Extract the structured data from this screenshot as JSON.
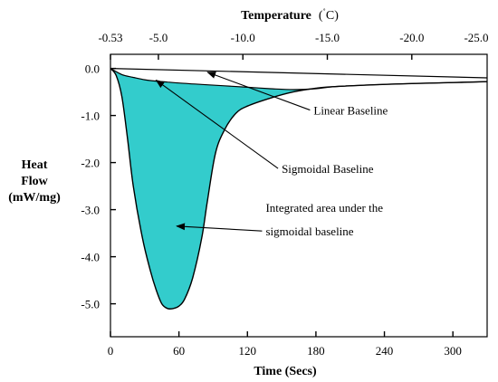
{
  "chart_data": {
    "type": "area",
    "xlabel": "Time (Secs)",
    "ylabel_lines": [
      "Heat",
      "Flow",
      "(mW/mg)"
    ],
    "top_axis_label_parts": [
      "Temperature",
      "(",
      "˚",
      "C)"
    ],
    "xlim": [
      0,
      330
    ],
    "ylim": [
      -5.7,
      0.3
    ],
    "x_ticks": [
      0,
      60,
      120,
      180,
      240,
      300
    ],
    "x_tick_labels": [
      "0",
      "60",
      "120",
      "180",
      "240",
      "300"
    ],
    "y_ticks": [
      0,
      -1,
      -2,
      -3,
      -4,
      -5
    ],
    "y_tick_labels": [
      "0.0",
      "-1.0",
      "-2.0",
      "-3.0",
      "-4.0",
      "-5.0"
    ],
    "top_ticks": [
      0,
      42,
      116,
      190,
      264,
      338
    ],
    "top_tick_labels": [
      "-0.53",
      "-5.0",
      "-10.0",
      "-15.0",
      "-20.0",
      "-25.0"
    ],
    "grid": false,
    "series": [
      {
        "role": "heat_flow_curve",
        "x": [
          0,
          5,
          10,
          15,
          20,
          28,
          35,
          40,
          45,
          50,
          55,
          60,
          65,
          72,
          80,
          85,
          92,
          100,
          110,
          120,
          140,
          160,
          180,
          200,
          250,
          300,
          330
        ],
        "y": [
          0,
          -0.15,
          -0.6,
          -1.5,
          -2.5,
          -3.6,
          -4.3,
          -4.7,
          -5.0,
          -5.1,
          -5.1,
          -5.05,
          -4.9,
          -4.45,
          -3.6,
          -2.8,
          -1.8,
          -1.3,
          -0.95,
          -0.8,
          -0.63,
          -0.5,
          -0.42,
          -0.38,
          -0.33,
          -0.3,
          -0.28
        ]
      },
      {
        "role": "sigmoidal_baseline",
        "x": [
          0,
          10,
          20,
          30,
          40,
          50,
          60,
          80,
          100,
          120,
          140,
          160,
          180,
          200,
          250,
          300,
          330
        ],
        "y": [
          0,
          -0.13,
          -0.19,
          -0.24,
          -0.27,
          -0.29,
          -0.31,
          -0.34,
          -0.37,
          -0.4,
          -0.43,
          -0.45,
          -0.43,
          -0.38,
          -0.33,
          -0.3,
          -0.28
        ]
      },
      {
        "role": "linear_baseline",
        "x": [
          0,
          330
        ],
        "y": [
          0,
          -0.2
        ]
      }
    ],
    "annotations": [
      {
        "text": "Linear Baseline",
        "x": 178,
        "y": -0.98,
        "arrow_to": [
          85,
          -0.08
        ]
      },
      {
        "text": "Sigmoidal Baseline",
        "x": 150,
        "y": -2.22,
        "arrow_to": [
          40,
          -0.25
        ]
      },
      {
        "text": "Integrated area under the",
        "x": 136,
        "y": -3.05
      },
      {
        "text": "sigmoidal baseline",
        "x": 136,
        "y": -3.55,
        "arrow_to": [
          58,
          -3.35
        ]
      }
    ],
    "colors": {
      "fill": "#33cccc",
      "line": "#000000"
    }
  }
}
